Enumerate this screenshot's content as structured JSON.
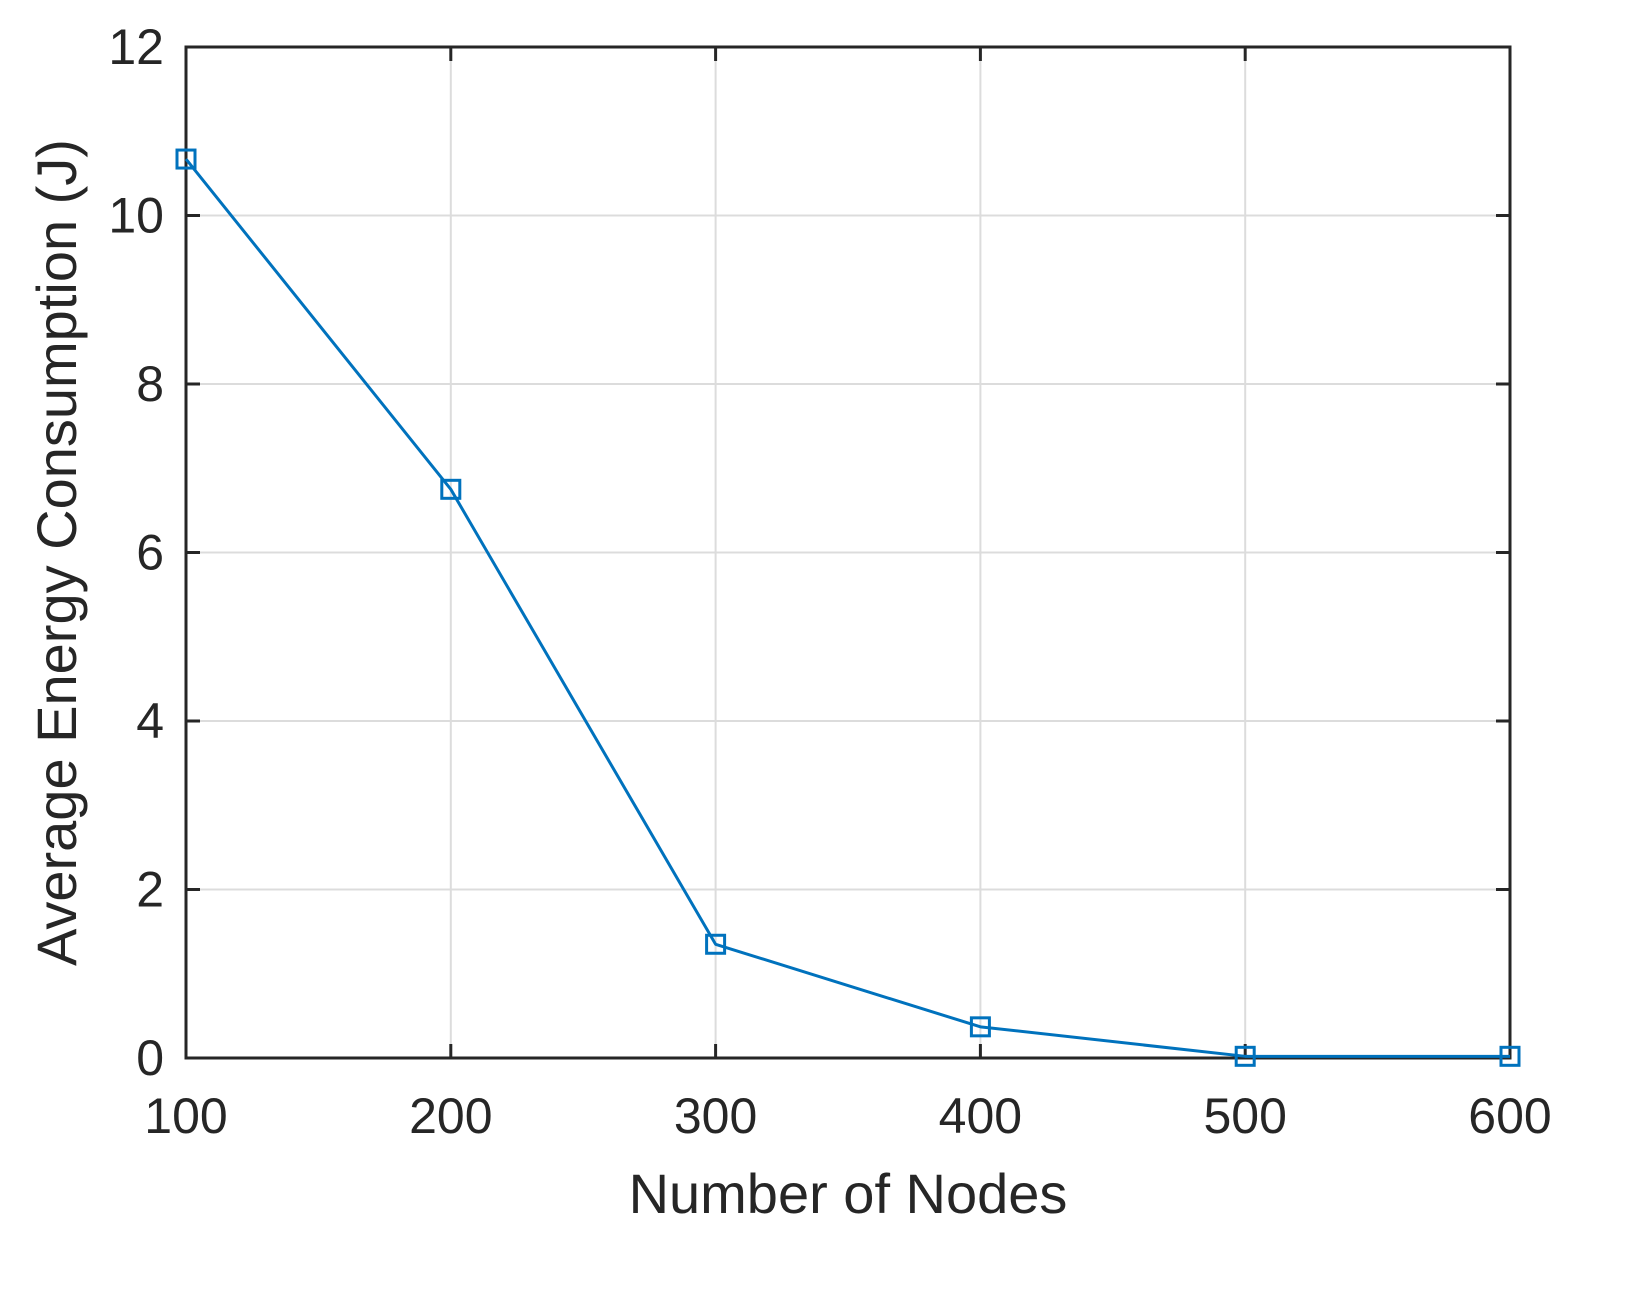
{
  "chart_data": {
    "type": "line",
    "title": "",
    "xlabel": "Number of Nodes",
    "ylabel": "Average Energy Consumption (J)",
    "xlim": [
      100,
      600
    ],
    "ylim": [
      0,
      12
    ],
    "xticks": [
      100,
      200,
      300,
      400,
      500,
      600
    ],
    "yticks": [
      0,
      2,
      4,
      6,
      8,
      10,
      12
    ],
    "xtick_labels": [
      "100",
      "200",
      "300",
      "400",
      "500",
      "600"
    ],
    "ytick_labels": [
      "0",
      "2",
      "4",
      "6",
      "8",
      "10",
      "12"
    ],
    "grid": true,
    "legend": "none",
    "series": [
      {
        "x": [
          100,
          200,
          300,
          400,
          500,
          600
        ],
        "y": [
          10.67,
          6.75,
          1.35,
          0.37,
          0.02,
          0.02
        ],
        "color": "#0072BD",
        "marker": "square"
      }
    ]
  }
}
